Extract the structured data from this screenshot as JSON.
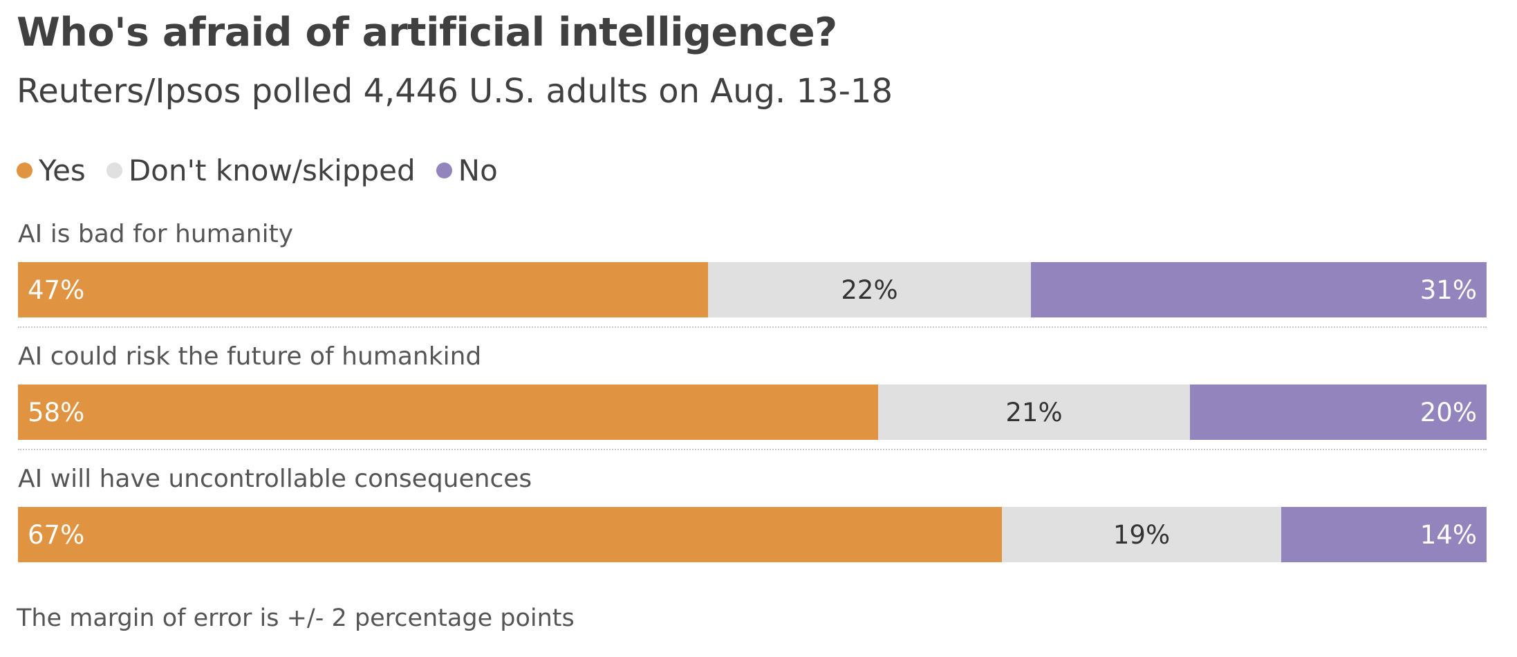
{
  "header": {
    "title": "Who's afraid of artificial intelligence?",
    "subtitle": "Reuters/Ipsos polled 4,446 U.S. adults on Aug. 13-18"
  },
  "colors": {
    "yes": "#e09340",
    "dont_know": "#e0e0e0",
    "no": "#9484bd"
  },
  "chart_data": {
    "type": "bar",
    "orientation": "horizontal",
    "stacked": true,
    "normalized": true,
    "legend_position": "top-left",
    "grid": false,
    "legend": [
      {
        "key": "yes",
        "label": "Yes"
      },
      {
        "key": "dont_know",
        "label": "Don't know/skipped"
      },
      {
        "key": "no",
        "label": "No"
      }
    ],
    "categories": [
      "AI is bad for humanity",
      "AI could risk the future of humankind",
      "AI will have uncontrollable consequences"
    ],
    "series": [
      {
        "name": "Yes",
        "key": "yes",
        "values": [
          47,
          58,
          67
        ],
        "labels": [
          "47%",
          "58%",
          "67%"
        ]
      },
      {
        "name": "Don't know/skipped",
        "key": "dont_know",
        "values": [
          22,
          21,
          19
        ],
        "labels": [
          "22%",
          "21%",
          "19%"
        ]
      },
      {
        "name": "No",
        "key": "no",
        "values": [
          31,
          20,
          14
        ],
        "labels": [
          "31%",
          "20%",
          "14%"
        ]
      }
    ]
  },
  "footer": {
    "note": "The margin of error is +/- 2 percentage points"
  }
}
